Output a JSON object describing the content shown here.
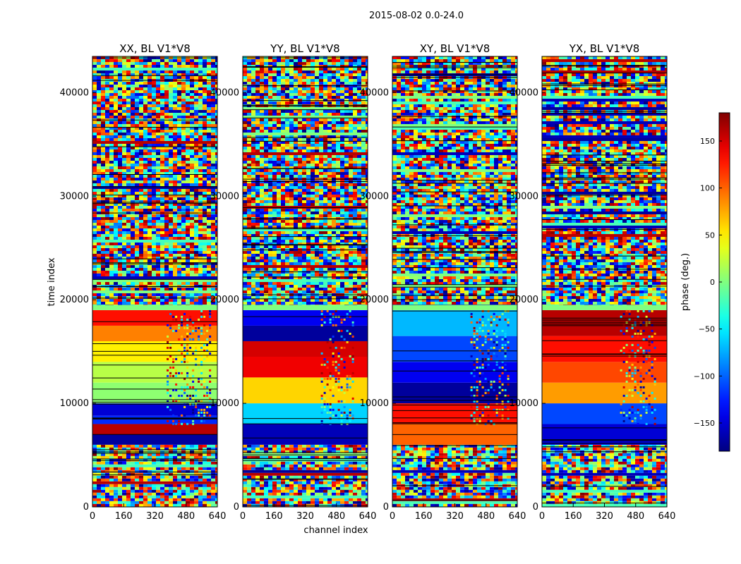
{
  "chart_data": {
    "type": "heatmap",
    "suptitle": "2015-08-02 0.0-24.0",
    "xlabel": "channel index",
    "ylabel": "time index",
    "xlim": [
      0,
      640
    ],
    "ylim": [
      0,
      43500
    ],
    "x_ticks": [
      0,
      160,
      320,
      480,
      640
    ],
    "y_ticks": [
      0,
      10000,
      20000,
      30000,
      40000
    ],
    "colormap": "jet",
    "colorbar": {
      "label": "phase (deg.)",
      "range": [
        -180,
        180
      ],
      "ticks": [
        150,
        100,
        50,
        0,
        -50,
        -100,
        -150
      ],
      "tick_labels": [
        "150",
        "100",
        "50",
        "0",
        "−50",
        "−100",
        "−150"
      ]
    },
    "panels": [
      {
        "title": "XX, BL V1*V8",
        "noise_rows": [
          [
            0,
            6000
          ],
          [
            19500,
            43500
          ]
        ],
        "structured_region": [
          {
            "t": [
              6000,
              7000
            ],
            "phase": -170
          },
          {
            "t": [
              7000,
              8000
            ],
            "phase": 160
          },
          {
            "t": [
              8000,
              8800
            ],
            "phase": -120
          },
          {
            "t": [
              8800,
              10000
            ],
            "phase": -150
          },
          {
            "t": [
              10000,
              12000
            ],
            "phase": 5
          },
          {
            "t": [
              12000,
              14000
            ],
            "phase": 20
          },
          {
            "t": [
              14000,
              16000
            ],
            "phase": 50
          },
          {
            "t": [
              16000,
              17500
            ],
            "phase": 90
          },
          {
            "t": [
              17500,
              19000
            ],
            "phase": 130
          }
        ],
        "dropout_band": [
          380,
          600
        ]
      },
      {
        "title": "YY, BL V1*V8",
        "noise_rows": [
          [
            0,
            6000
          ],
          [
            19500,
            43500
          ]
        ],
        "structured_region": [
          {
            "t": [
              6000,
              8000
            ],
            "phase": -160
          },
          {
            "t": [
              8000,
              10000
            ],
            "phase": -60
          },
          {
            "t": [
              10000,
              12500
            ],
            "phase": 60
          },
          {
            "t": [
              12500,
              14500
            ],
            "phase": 140
          },
          {
            "t": [
              14500,
              16000
            ],
            "phase": 150
          },
          {
            "t": [
              16000,
              17500
            ],
            "phase": -170
          },
          {
            "t": [
              17500,
              19000
            ],
            "phase": -140
          }
        ],
        "dropout_band": [
          400,
          560
        ]
      },
      {
        "title": "XY, BL V1*V8",
        "noise_rows": [
          [
            0,
            6000
          ],
          [
            19500,
            43500
          ]
        ],
        "structured_region": [
          {
            "t": [
              6000,
              8000
            ],
            "phase": 100
          },
          {
            "t": [
              8000,
              10000
            ],
            "phase": 130
          },
          {
            "t": [
              10000,
              12000
            ],
            "phase": -170
          },
          {
            "t": [
              12000,
              14000
            ],
            "phase": -140
          },
          {
            "t": [
              14000,
              16500
            ],
            "phase": -110
          },
          {
            "t": [
              16500,
              19000
            ],
            "phase": -70
          }
        ],
        "dropout_band": [
          400,
          600
        ]
      },
      {
        "title": "YX, BL V1*V8",
        "noise_rows": [
          [
            0,
            6000
          ],
          [
            19500,
            43500
          ]
        ],
        "structured_region": [
          {
            "t": [
              6000,
              8000
            ],
            "phase": -150
          },
          {
            "t": [
              8000,
              10000
            ],
            "phase": -110
          },
          {
            "t": [
              10000,
              12000
            ],
            "phase": 80
          },
          {
            "t": [
              12000,
              14000
            ],
            "phase": 110
          },
          {
            "t": [
              14000,
              16500
            ],
            "phase": 130
          },
          {
            "t": [
              16500,
              19000
            ],
            "phase": 160
          }
        ],
        "dropout_band": [
          400,
          580
        ]
      }
    ]
  }
}
